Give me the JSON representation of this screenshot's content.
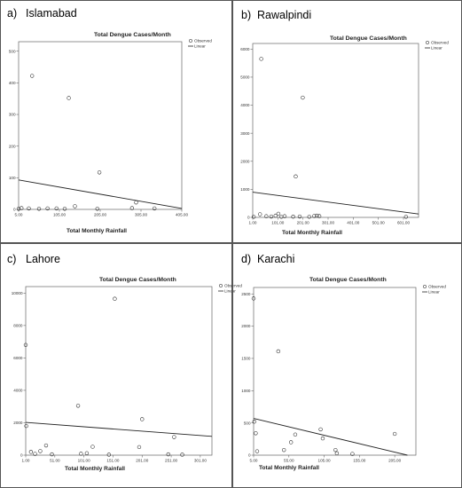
{
  "chart_data": [
    {
      "type": "scatter",
      "label": "a)",
      "city": "Islamabad",
      "title": "Total Dengue Cases/Month",
      "xlabel": "Total Monthly Rainfall",
      "ylabel": "",
      "xlim": [
        5,
        405
      ],
      "ylim": [
        0,
        530
      ],
      "xticks": [
        5,
        105,
        205,
        305,
        405
      ],
      "xtick_labels": [
        "5.00",
        "105.00",
        "205.00",
        "305.00",
        "405.00"
      ],
      "yticks": [
        0,
        100,
        200,
        300,
        400,
        500
      ],
      "ytick_labels": [
        "0",
        "100",
        "200",
        "300",
        "400",
        "500"
      ],
      "legend": [
        "Observed",
        "Linear"
      ],
      "legend_position": "top-right",
      "series": [
        {
          "name": "Observed",
          "x": [
            5,
            12,
            30,
            38,
            55,
            76,
            98,
            118,
            128,
            143,
            198,
            203,
            283,
            293,
            338
          ],
          "y": [
            2,
            4,
            3,
            422,
            2,
            3,
            3,
            2,
            352,
            10,
            2,
            117,
            4,
            22,
            3
          ]
        },
        {
          "name": "Linear",
          "x": [
            5,
            405
          ],
          "y": [
            93,
            3
          ]
        }
      ]
    },
    {
      "type": "scatter",
      "label": "b)",
      "city": "Rawalpindi",
      "title": "Total Dengue Cases/Month",
      "xlabel": "Total Monthly Rainfall",
      "ylabel": "",
      "xlim": [
        1,
        661
      ],
      "ylim": [
        0,
        6200
      ],
      "xticks": [
        1,
        101,
        201,
        301,
        401,
        501,
        601
      ],
      "xtick_labels": [
        "1.00",
        "101.00",
        "201.00",
        "301.00",
        "401.00",
        "501.00",
        "601.00"
      ],
      "yticks": [
        0,
        1000,
        2000,
        3000,
        4000,
        5000,
        6000
      ],
      "ytick_labels": [
        "0",
        "1000",
        "2000",
        "3000",
        "4000",
        "5000",
        "6000"
      ],
      "legend": [
        "Observed",
        "Linear"
      ],
      "legend_position": "top-right",
      "series": [
        {
          "name": "Observed",
          "x": [
            5,
            30,
            35,
            55,
            75,
            92,
            103,
            115,
            128,
            162,
            172,
            188,
            200,
            226,
            246,
            256,
            266,
            611
          ],
          "y": [
            20,
            110,
            5650,
            40,
            30,
            60,
            130,
            20,
            40,
            25,
            1460,
            30,
            4270,
            20,
            50,
            60,
            45,
            20
          ]
        },
        {
          "name": "Linear",
          "x": [
            1,
            661
          ],
          "y": [
            900,
            120
          ]
        }
      ]
    },
    {
      "type": "scatter",
      "label": "c)",
      "city": "Lahore",
      "title": "Total Dengue Cases/Month",
      "xlabel": "Total Monthly Rainfall",
      "ylabel": "",
      "xlim": [
        1,
        321
      ],
      "ylim": [
        0,
        10400
      ],
      "xticks": [
        1,
        51,
        101,
        151,
        201,
        251,
        301
      ],
      "xtick_labels": [
        "1.00",
        "51.00",
        "101.00",
        "151.00",
        "201.00",
        "251.00",
        "301.00"
      ],
      "yticks": [
        0,
        2000,
        4000,
        6000,
        8000,
        10000
      ],
      "ytick_labels": [
        "0",
        "2000",
        "4000",
        "6000",
        "8000",
        "10000"
      ],
      "legend": [
        "Observed",
        "Linear"
      ],
      "legend_position": "top-right",
      "series": [
        {
          "name": "Observed",
          "x": [
            1,
            2,
            10,
            17,
            26,
            36,
            46,
            91,
            96,
            106,
            116,
            144,
            154,
            196,
            201,
            246,
            256,
            270
          ],
          "y": [
            6800,
            1800,
            200,
            80,
            250,
            600,
            50,
            3050,
            90,
            120,
            520,
            30,
            9650,
            500,
            2220,
            50,
            1120,
            30
          ]
        },
        {
          "name": "Linear",
          "x": [
            1,
            321
          ],
          "y": [
            2020,
            1160
          ]
        }
      ]
    },
    {
      "type": "scatter",
      "label": "d)",
      "city": "Karachi",
      "title": "Total Dengue Cases/Month",
      "xlabel": "Total Monthly Rainfall",
      "ylabel": "",
      "xlim": [
        5,
        235
      ],
      "ylim": [
        0,
        2600
      ],
      "xticks": [
        5,
        55,
        105,
        155,
        205
      ],
      "xtick_labels": [
        "5.00",
        "55.00",
        "105.00",
        "155.00",
        "205.00"
      ],
      "yticks": [
        0,
        500,
        1000,
        1500,
        2000,
        2500
      ],
      "ytick_labels": [
        "0",
        "500",
        "1000",
        "1500",
        "2000",
        "2500"
      ],
      "legend": [
        "Observed",
        "Linear"
      ],
      "legend_position": "top-right",
      "series": [
        {
          "name": "Observed",
          "x": [
            5,
            6,
            8,
            10,
            40,
            48,
            58,
            64,
            100,
            103,
            121,
            123,
            145,
            205
          ],
          "y": [
            2430,
            520,
            340,
            60,
            1610,
            80,
            200,
            320,
            400,
            260,
            80,
            30,
            20,
            330
          ]
        },
        {
          "name": "Linear",
          "x": [
            5,
            223
          ],
          "y": [
            570,
            0
          ]
        }
      ]
    }
  ]
}
